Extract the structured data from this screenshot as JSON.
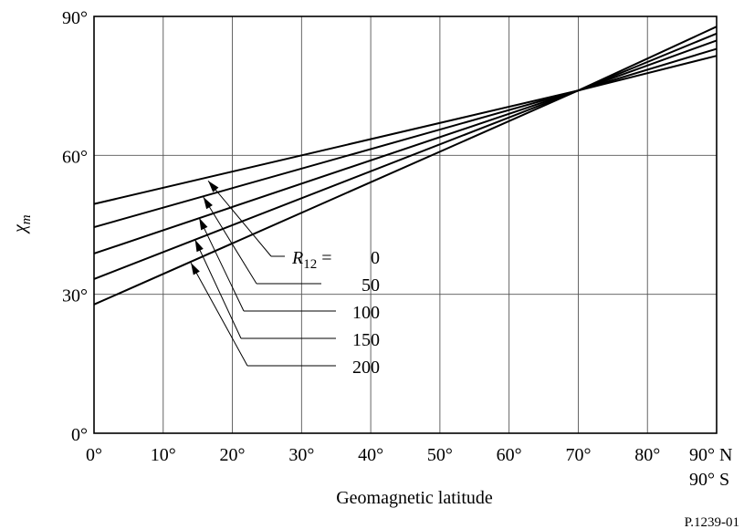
{
  "chart_data": {
    "type": "line",
    "xlabel": "Geomagnetic latitude",
    "ylabel": "χ",
    "ylabel_sub": "m",
    "xlim": [
      0,
      90
    ],
    "ylim": [
      0,
      90
    ],
    "x_ticks": [
      "0°",
      "10°",
      "20°",
      "30°",
      "40°",
      "50°",
      "60°",
      "70°",
      "80°",
      "90° N"
    ],
    "x_tick_extra": "90° S",
    "y_ticks": [
      "0°",
      "30°",
      "60°",
      "90°"
    ],
    "grid": true,
    "legend_prefix": "R",
    "legend_prefix_sub": "12",
    "legend_prefix_eq": " =",
    "series": [
      {
        "name": "0",
        "x": [
          0,
          70,
          90
        ],
        "y": [
          49.5,
          74,
          81.5
        ]
      },
      {
        "name": "50",
        "x": [
          0,
          70,
          90
        ],
        "y": [
          44.5,
          74,
          83
        ]
      },
      {
        "name": "100",
        "x": [
          0,
          70,
          90
        ],
        "y": [
          38.8,
          74,
          84.8
        ]
      },
      {
        "name": "150",
        "x": [
          0,
          70,
          90
        ],
        "y": [
          33.3,
          74,
          86.3
        ]
      },
      {
        "name": "200",
        "x": [
          0,
          70,
          90
        ],
        "y": [
          27.8,
          74,
          87.8
        ]
      }
    ],
    "arrow_targets": [
      {
        "x": 16.5,
        "y": 54.5
      },
      {
        "x": 15.8,
        "y": 51
      },
      {
        "x": 15.2,
        "y": 46.5
      },
      {
        "x": 14.6,
        "y": 41.8
      },
      {
        "x": 14.0,
        "y": 36.8
      }
    ]
  },
  "figure_id": "P.1239-01"
}
